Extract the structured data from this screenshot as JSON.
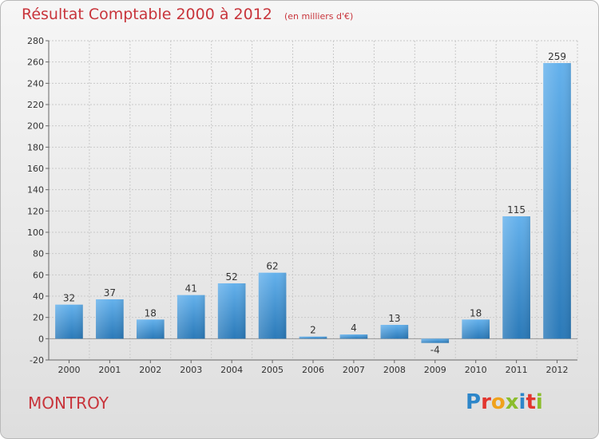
{
  "title": "Résultat Comptable 2000 à 2012",
  "subtitle": "(en milliers d'€)",
  "commune": "MONTROY",
  "logo": {
    "text": "Proxiti",
    "letters": [
      {
        "ch": "P",
        "color": "#2d86c9"
      },
      {
        "ch": "r",
        "color": "#e2362f"
      },
      {
        "ch": "o",
        "color": "#f0a21c"
      },
      {
        "ch": "x",
        "color": "#8bbd2c"
      },
      {
        "ch": "i",
        "color": "#2d86c9"
      },
      {
        "ch": "t",
        "color": "#e2362f"
      },
      {
        "ch": "i",
        "color": "#8bbd2c"
      }
    ]
  },
  "colors": {
    "accent": "#c8343b",
    "bar_light": "#64b1ec",
    "bar_dark": "#2a79b8",
    "grid": "#c9c9c9"
  },
  "chart_data": {
    "type": "bar",
    "title": "Résultat Comptable 2000 à 2012",
    "subtitle": "(en milliers d'€)",
    "xlabel": "",
    "ylabel": "",
    "categories": [
      "2000",
      "2001",
      "2002",
      "2003",
      "2004",
      "2005",
      "2006",
      "2007",
      "2008",
      "2009",
      "2010",
      "2011",
      "2012"
    ],
    "values": [
      32,
      37,
      18,
      41,
      52,
      62,
      2,
      4,
      13,
      -4,
      18,
      115,
      259
    ],
    "ylim": [
      -20,
      280
    ],
    "yticks": [
      -20,
      0,
      20,
      40,
      60,
      80,
      100,
      120,
      140,
      160,
      180,
      200,
      220,
      240,
      260,
      280
    ],
    "grid": true,
    "legend": "none"
  }
}
